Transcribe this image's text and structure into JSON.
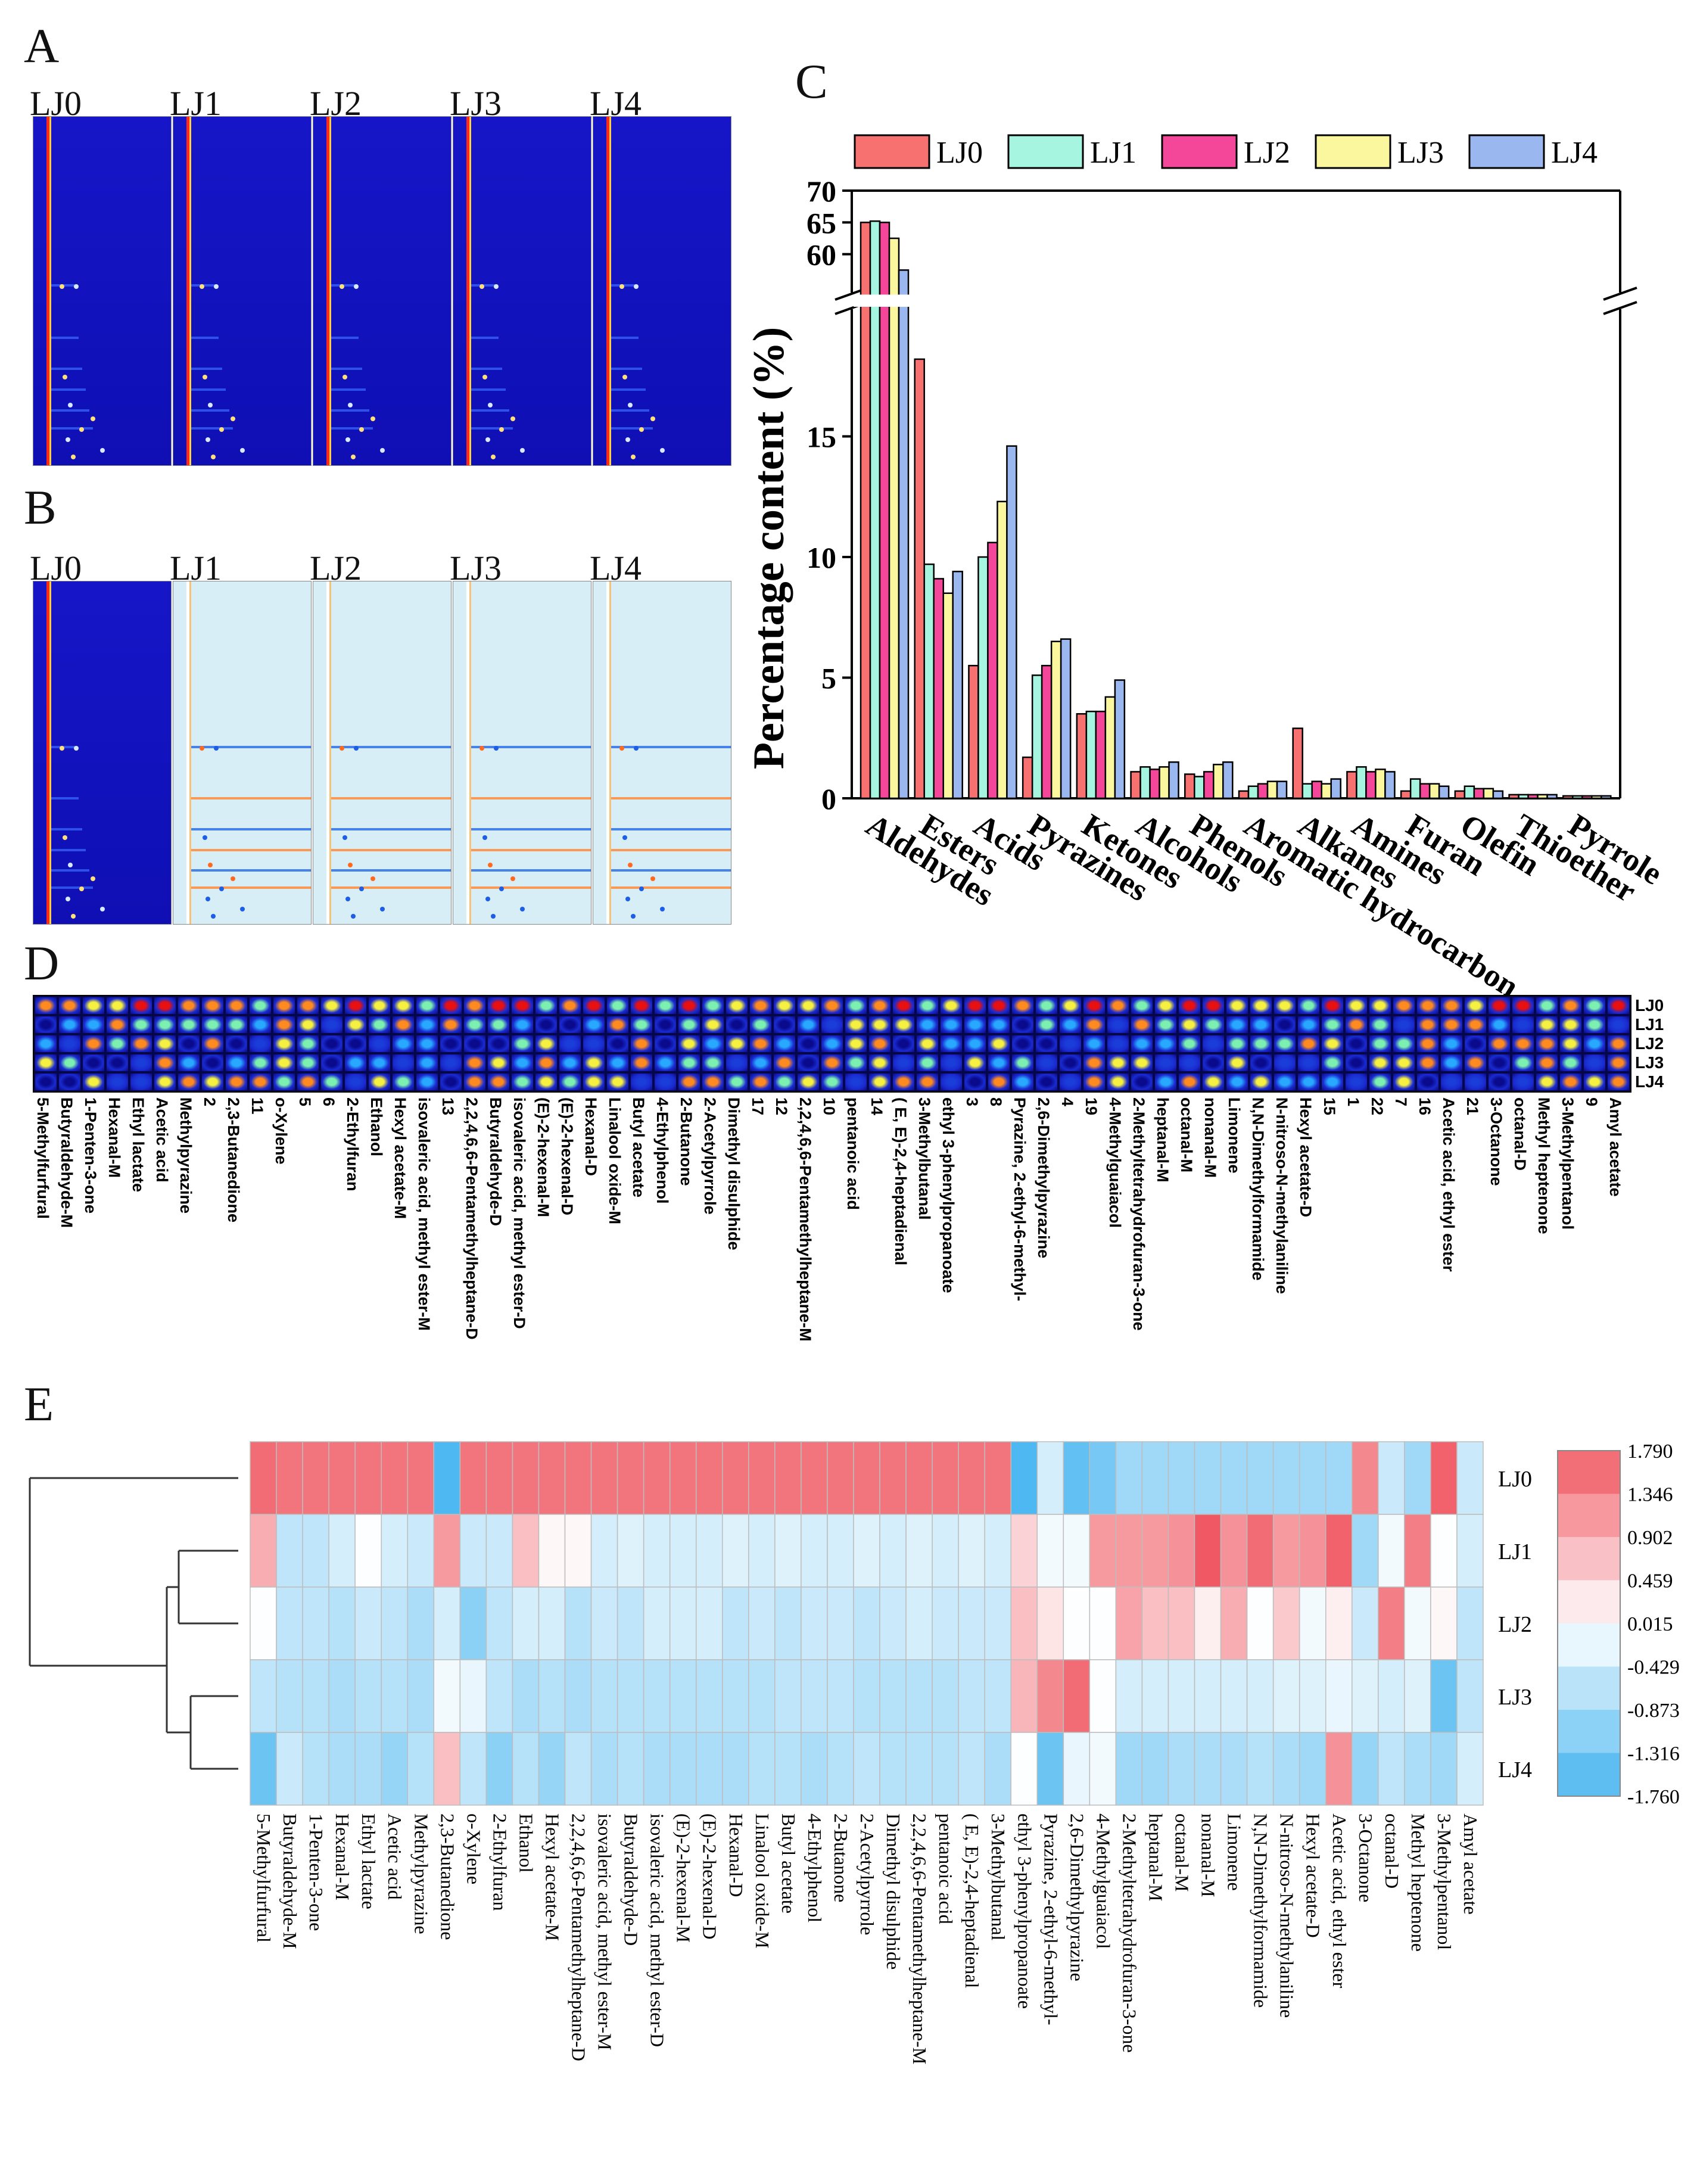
{
  "panels": {
    "A": "A",
    "B": "B",
    "C": "C",
    "D": "D",
    "E": "E"
  },
  "groups": [
    "LJ0",
    "LJ1",
    "LJ2",
    "LJ3",
    "LJ4"
  ],
  "chart_data": [
    {
      "panel": "C",
      "type": "bar",
      "ylabel": "Percentage content (%)",
      "xlabel": "",
      "title": "",
      "categories": [
        "Aldehydes",
        "Esters",
        "Acids",
        "Pyrazines",
        "Ketones",
        "Alcohols",
        "Phenols",
        "Aromatic hydrocarbon",
        "Alkanes",
        "Amines",
        "Furan",
        "Olefin",
        "Thioether",
        "Pyrrole"
      ],
      "series": [
        {
          "name": "LJ0",
          "color": "#f87171",
          "values": [
            65.0,
            18.2,
            5.5,
            1.7,
            3.5,
            1.1,
            1.0,
            0.3,
            2.9,
            1.1,
            0.3,
            0.3,
            0.15,
            0.1
          ]
        },
        {
          "name": "LJ1",
          "color": "#a6f5e0",
          "values": [
            65.2,
            9.7,
            10.0,
            5.1,
            3.6,
            1.3,
            0.9,
            0.5,
            0.6,
            1.3,
            0.8,
            0.5,
            0.15,
            0.1
          ]
        },
        {
          "name": "LJ2",
          "color": "#f5479a",
          "values": [
            65.0,
            9.1,
            10.6,
            5.5,
            3.6,
            1.2,
            1.1,
            0.6,
            0.7,
            1.1,
            0.6,
            0.4,
            0.15,
            0.1
          ]
        },
        {
          "name": "LJ3",
          "color": "#fbf79e",
          "values": [
            62.5,
            8.5,
            12.3,
            6.5,
            4.2,
            1.3,
            1.4,
            0.7,
            0.6,
            1.2,
            0.6,
            0.4,
            0.15,
            0.1
          ]
        },
        {
          "name": "LJ4",
          "color": "#9ab8ef",
          "values": [
            57.5,
            9.4,
            14.6,
            6.6,
            4.9,
            1.5,
            1.5,
            0.7,
            0.8,
            1.1,
            0.5,
            0.3,
            0.15,
            0.1
          ]
        }
      ],
      "yticks_lower": [
        0,
        5,
        10,
        15
      ],
      "yticks_upper": [
        60,
        65,
        70
      ],
      "y_break": true,
      "legend": "top"
    },
    {
      "panel": "E",
      "type": "heatmap",
      "rows": [
        "LJ0",
        "LJ1",
        "LJ2",
        "LJ3",
        "LJ4"
      ],
      "columns": [
        "5-Methylfurfural",
        "Butyraldehyde-M",
        "1-Penten-3-one",
        "Hexanal-M",
        "Ethyl lactate",
        "Acetic acid",
        "Methylpyrazine",
        "2,3-Butanedione",
        "o-Xylene",
        "2-Ethylfuran",
        "Ethanol",
        "Hexyl acetate-M",
        "2,2,4,6,6-Pentamethylheptane-D",
        "isovaleric acid, methyl ester-M",
        "Butyraldehyde-D",
        "isovaleric acid, methyl ester-D",
        "(E)-2-hexenal-M",
        "(E)-2-hexenal-D",
        "Hexanal-D",
        "Linalool oxide-M",
        "Butyl acetate",
        "4-Ethylphenol",
        "2-Butanone",
        "2-Acetylpyrrole",
        "Dimethyl disulphide",
        "2,2,4,6,6-Pentamethylheptane-M",
        "pentanoic acid",
        "( E, E)-2,4-heptadienal",
        "3-Methylbutanal",
        "ethyl 3-phenylpropanoate",
        "Pyrazine, 2-ethyl-6-methyl-",
        "2,6-Dimethylpyrazine",
        "4-Methylguaiacol",
        "2-Methyltetrahydrofuran-3-one",
        "heptanal-M",
        "octanal-M",
        "nonanal-M",
        "Limonene",
        "N,N-Dimethylformamide",
        "N-nitroso-N-methylaniline",
        "Hexyl acetate-D",
        "Acetic acid, ethyl ester",
        "3-Octanone",
        "octanal-D",
        "Methyl heptenone",
        "3-Methylpentanol",
        "Amyl acetate"
      ],
      "values": [
        [
          1.6,
          1.5,
          1.5,
          1.5,
          1.5,
          1.5,
          1.5,
          -1.7,
          1.5,
          1.5,
          1.5,
          1.5,
          1.5,
          1.5,
          1.5,
          1.5,
          1.5,
          1.5,
          1.5,
          1.5,
          1.5,
          1.5,
          1.5,
          1.5,
          1.5,
          1.5,
          1.5,
          1.5,
          1.5,
          -1.7,
          -0.4,
          -1.5,
          -1.3,
          -0.9,
          -0.9,
          -0.9,
          -0.9,
          -0.9,
          -0.9,
          -0.9,
          -0.9,
          -0.9,
          1.3,
          -0.5,
          -0.9,
          1.7,
          -0.5
        ],
        [
          0.9,
          -0.6,
          -0.6,
          -0.4,
          0.0,
          -0.4,
          -0.5,
          1.1,
          -0.5,
          -0.5,
          0.7,
          0.1,
          0.1,
          -0.4,
          -0.3,
          -0.4,
          -0.4,
          -0.4,
          -0.3,
          -0.4,
          -0.3,
          -0.4,
          -0.4,
          -0.3,
          -0.4,
          -0.3,
          -0.4,
          -0.3,
          -0.4,
          0.5,
          -0.1,
          -0.1,
          1.1,
          1.1,
          1.1,
          1.2,
          1.8,
          1.2,
          1.6,
          1.1,
          1.2,
          1.7,
          -0.9,
          -0.1,
          1.4,
          0.0,
          -0.4
        ],
        [
          0.0,
          -0.6,
          -0.6,
          -0.7,
          -0.5,
          -0.6,
          -0.8,
          -0.4,
          -1.1,
          -0.6,
          -0.4,
          -0.4,
          -0.7,
          -0.5,
          -0.6,
          -0.4,
          -0.4,
          -0.4,
          -0.6,
          -0.5,
          -0.6,
          -0.5,
          -0.5,
          -0.6,
          -0.5,
          -0.4,
          -0.5,
          -0.5,
          -0.5,
          0.7,
          0.3,
          0.0,
          0.0,
          1.0,
          0.7,
          0.7,
          0.2,
          0.9,
          0.0,
          0.6,
          -0.1,
          0.2,
          -0.5,
          1.4,
          -0.1,
          0.1,
          -0.6
        ],
        [
          -0.6,
          -0.7,
          -0.7,
          -0.8,
          -0.7,
          -0.7,
          -0.8,
          -0.1,
          -0.2,
          -0.6,
          -0.8,
          -0.7,
          -0.8,
          -0.7,
          -0.7,
          -0.7,
          -0.7,
          -0.7,
          -0.7,
          -0.7,
          -0.6,
          -0.6,
          -0.6,
          -0.7,
          -0.7,
          -0.7,
          -0.7,
          -0.6,
          -0.6,
          0.8,
          1.3,
          1.6,
          0.0,
          -0.4,
          -0.4,
          -0.4,
          -0.4,
          -0.4,
          -0.4,
          -0.3,
          -0.3,
          -0.2,
          -0.3,
          -0.4,
          -0.3,
          -1.4,
          -0.6
        ],
        [
          -1.4,
          -0.5,
          -0.7,
          -0.8,
          -0.8,
          -1.0,
          -0.7,
          0.7,
          -0.6,
          -1.1,
          -0.7,
          -1.0,
          -0.6,
          -0.8,
          -0.7,
          -0.8,
          -0.8,
          -0.8,
          -0.8,
          -0.7,
          -0.7,
          -0.8,
          -0.7,
          -0.6,
          -0.7,
          -0.7,
          -0.7,
          -0.6,
          -0.8,
          0.0,
          -1.4,
          -0.2,
          -0.1,
          -0.9,
          -0.9,
          -0.8,
          -0.8,
          -0.8,
          -0.7,
          -0.8,
          -0.9,
          1.2,
          -1.0,
          -0.6,
          -0.8,
          -0.9,
          -0.4
        ]
      ],
      "colorbar_ticks": [
        "1.790",
        "1.346",
        "0.902",
        "0.459",
        "0.015",
        "-0.429",
        "-0.873",
        "-1.316",
        "-1.760"
      ]
    }
  ],
  "gallery": {
    "columns": [
      "5-Methylfurfural",
      "Butyraldehyde-M",
      "1-Penten-3-one",
      "Hexanal-M",
      "Ethyl lactate",
      "Acetic acid",
      "Methylpyrazine",
      "2",
      "2,3-Butanedione",
      "11",
      "o-Xylene",
      "5",
      "6",
      "2-Ethylfuran",
      "Ethanol",
      "Hexyl acetate-M",
      "isovaleric acid, methyl ester-M",
      "13",
      "2,2,4,6,6-Pentamethylheptane-D",
      "Butyraldehyde-D",
      "isovaleric acid, methyl ester-D",
      "(E)-2-hexenal-M",
      "(E)-2-hexenal-D",
      "Hexanal-D",
      "Linalool oxide-M",
      "Butyl acetate",
      "4-Ethylphenol",
      "2-Butanone",
      "2-Acetylpyrrole",
      "Dimethyl disulphide",
      "17",
      "12",
      "2,2,4,6,6-Pentamethylheptane-M",
      "10",
      "pentanoic acid",
      "14",
      "( E, E)-2,4-heptadienal",
      "3-Methylbutanal",
      "ethyl 3-phenylpropanoate",
      "3",
      "8",
      "Pyrazine, 2-ethyl-6-methyl-",
      "2,6-Dimethylpyrazine",
      "4",
      "19",
      "4-Methylguaiacol",
      "2-Methyltetrahydrofuran-3-one",
      "heptanal-M",
      "octanal-M",
      "nonanal-M",
      "Limonene",
      "N,N-Dimethylformamide",
      "N-nitroso-N-methylaniline",
      "Hexyl acetate-D",
      "15",
      "1",
      "22",
      "7",
      "16",
      "Acetic acid, ethyl ester",
      "21",
      "3-Octanone",
      "octanal-D",
      "Methyl heptenone",
      "3-Methylpentanol",
      "9",
      "Amyl acetate"
    ]
  },
  "colors": {
    "dark_blue": "#1414c0",
    "light_bg": "#d8eef6"
  }
}
